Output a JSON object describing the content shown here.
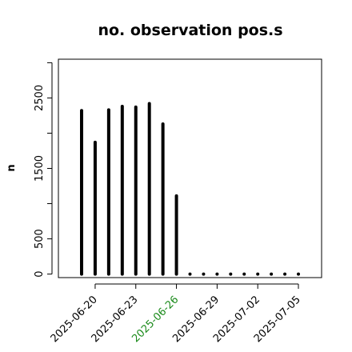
{
  "chart_data": {
    "type": "bar",
    "title": "no. observation pos.s",
    "ylabel": "n",
    "xlabel": "",
    "ylim": [
      -50,
      3050
    ],
    "x": [
      "2025-06-19",
      "2025-06-20",
      "2025-06-21",
      "2025-06-22",
      "2025-06-23",
      "2025-06-24",
      "2025-06-25",
      "2025-06-26",
      "2025-06-27",
      "2025-06-28",
      "2025-06-29",
      "2025-06-30",
      "2025-07-01",
      "2025-07-02",
      "2025-07-03",
      "2025-07-04",
      "2025-07-05"
    ],
    "values": [
      2320,
      1870,
      2330,
      2380,
      2370,
      2420,
      2130,
      1110,
      0,
      0,
      0,
      0,
      0,
      0,
      0,
      0,
      0
    ],
    "y_ticks": [
      0,
      500,
      1500,
      2500
    ],
    "y_tick_labels": [
      "0",
      "500",
      "1500",
      "2500"
    ],
    "y_minor_ticks": [
      0,
      500,
      1000,
      1500,
      2000,
      2500,
      3000
    ],
    "x_ticks": [
      {
        "date": "2025-06-20",
        "label": "2025-06-20",
        "color": "#000000"
      },
      {
        "date": "2025-06-23",
        "label": "2025-06-23",
        "color": "#000000"
      },
      {
        "date": "2025-06-26",
        "label": "2025-06-26",
        "color": "#1a8a1a"
      },
      {
        "date": "2025-06-29",
        "label": "2025-06-29",
        "color": "#000000"
      },
      {
        "date": "2025-07-02",
        "label": "2025-07-02",
        "color": "#000000"
      },
      {
        "date": "2025-07-05",
        "label": "2025-07-05",
        "color": "#000000"
      }
    ],
    "grid": false,
    "legend": "none",
    "bar_color": "#000000"
  }
}
